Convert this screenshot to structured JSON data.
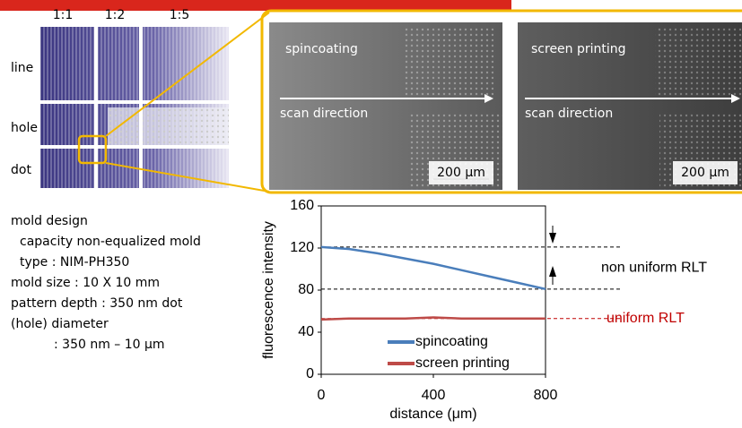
{
  "mold": {
    "ratios": [
      "1:1",
      "1:2",
      "1:5"
    ],
    "rows": [
      "line",
      "hole",
      "dot"
    ]
  },
  "micrographs": [
    {
      "title": "spincoating",
      "scan": "scan direction",
      "scale": "200 μm"
    },
    {
      "title": "screen printing",
      "scan": "scan direction",
      "scale": "200 μm"
    }
  ],
  "mold_info": [
    "mold design",
    "capacity non-equalized mold",
    "type : NIM-PH350",
    "mold size : 10 X 10 mm",
    "pattern depth : 350 nm dot",
    "(hole) diameter",
    ": 350 nm – 10 μm"
  ],
  "chart_data": {
    "type": "line",
    "x": [
      0,
      100,
      200,
      300,
      400,
      500,
      600,
      700,
      800
    ],
    "series": [
      {
        "name": "spincoating",
        "color": "#4a7ebb",
        "values": [
          121,
          119,
          115,
          110,
          105,
          99,
          93,
          87,
          81
        ]
      },
      {
        "name": "screen printing",
        "color": "#be4b48",
        "values": [
          52,
          53,
          53,
          53,
          54,
          53,
          53,
          53,
          53
        ]
      }
    ],
    "xlim": [
      0,
      800
    ],
    "ylim": [
      0,
      160
    ],
    "xticks": [
      0,
      400,
      800
    ],
    "yticks": [
      0,
      40,
      80,
      120,
      160
    ],
    "xlabel": "distance (μm)",
    "ylabel": "fluorescence intensity",
    "annotations": [
      {
        "text": "non uniform RLT",
        "color": "#000000"
      },
      {
        "text": "uniform RLT",
        "color": "#c00000"
      }
    ]
  }
}
